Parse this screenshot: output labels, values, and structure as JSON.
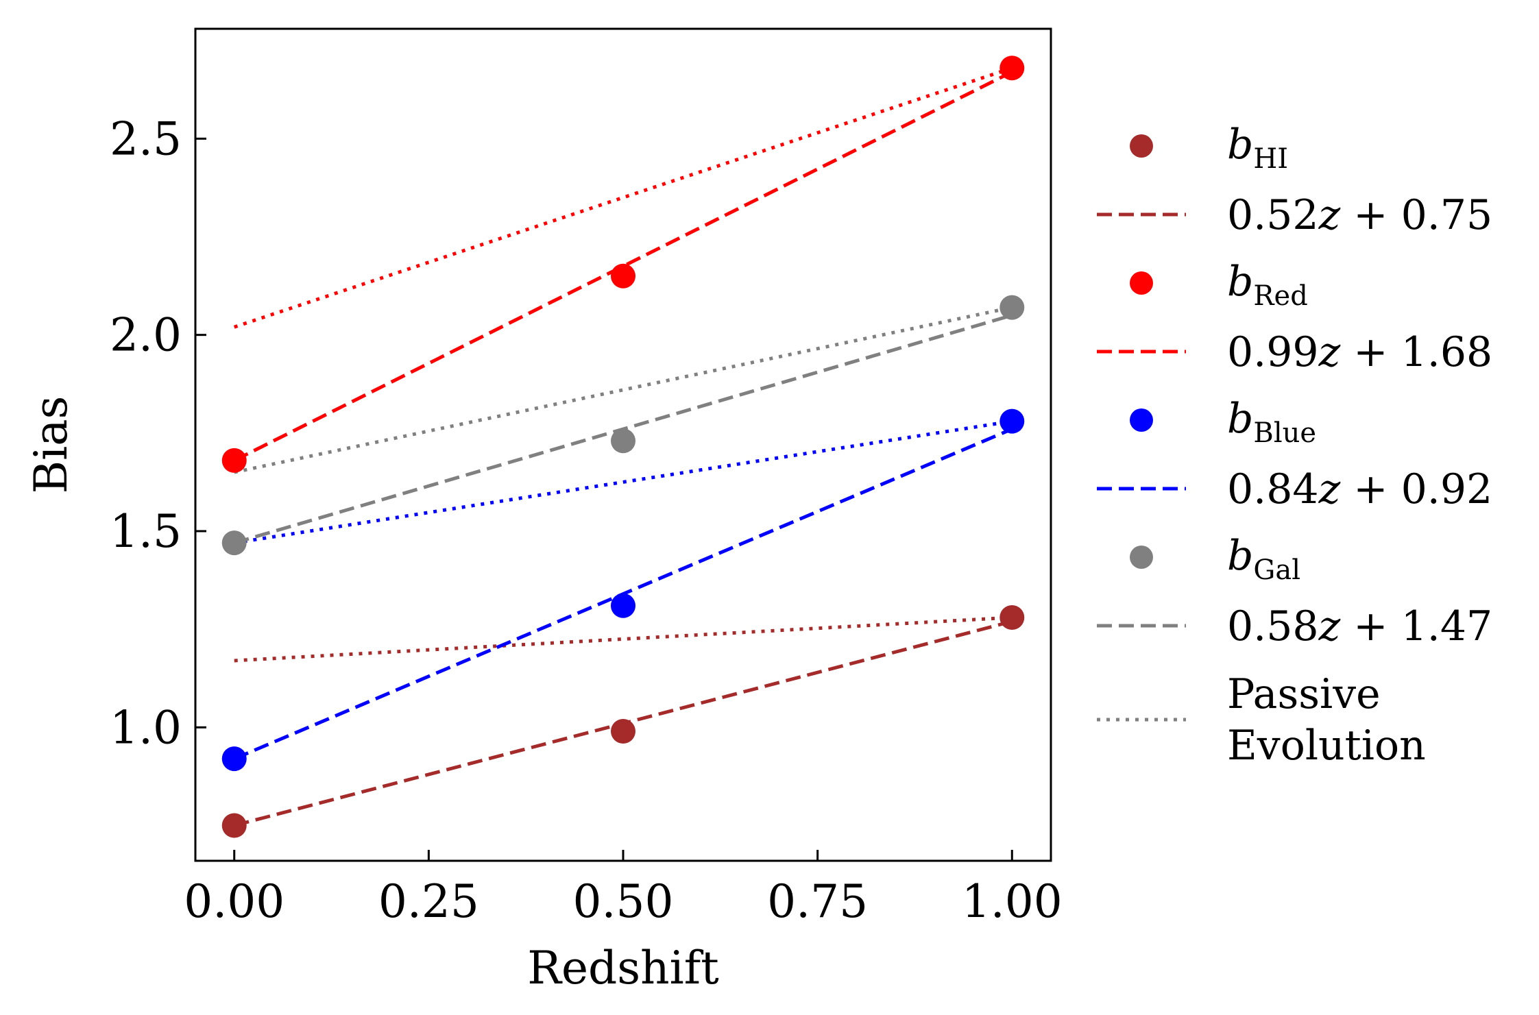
{
  "chart_data": {
    "type": "scatter",
    "xlabel": "Redshift",
    "ylabel": "Bias",
    "xlim": [
      -0.05,
      1.05
    ],
    "ylim": [
      0.66,
      2.78
    ],
    "x_ticks": [
      "0.00",
      "0.25",
      "0.50",
      "0.75",
      "1.00"
    ],
    "y_ticks": [
      "1.0",
      "1.5",
      "2.0",
      "2.5"
    ],
    "x_tick_values": [
      0,
      0.25,
      0.5,
      0.75,
      1.0
    ],
    "y_tick_values": [
      1.0,
      1.5,
      2.0,
      2.5
    ],
    "legend_position": "right",
    "tick_direction": "in",
    "series": [
      {
        "key": "hi",
        "symbol": "b",
        "subscript": "HI",
        "fit_label_pre": "0.52",
        "fit_label_var": "z",
        "fit_label_post": "+ 0.75",
        "color": "#a52a2a",
        "points": [
          [
            0,
            0.75
          ],
          [
            0.5,
            0.99
          ],
          [
            1.0,
            1.28
          ]
        ],
        "fit": {
          "slope": 0.52,
          "intercept": 0.75
        },
        "passive": [
          [
            0,
            1.17
          ],
          [
            1.0,
            1.28
          ]
        ]
      },
      {
        "key": "red",
        "symbol": "b",
        "subscript": "Red",
        "fit_label_pre": "0.99",
        "fit_label_var": "z",
        "fit_label_post": "+ 1.68",
        "color": "#ff0000",
        "points": [
          [
            0,
            1.68
          ],
          [
            0.5,
            2.15
          ],
          [
            1.0,
            2.68
          ]
        ],
        "fit": {
          "slope": 0.99,
          "intercept": 1.68
        },
        "passive": [
          [
            0,
            2.02
          ],
          [
            1.0,
            2.68
          ]
        ]
      },
      {
        "key": "blue",
        "symbol": "b",
        "subscript": "Blue",
        "fit_label_pre": "0.84",
        "fit_label_var": "z",
        "fit_label_post": "+ 0.92",
        "color": "#0000ff",
        "points": [
          [
            0,
            0.92
          ],
          [
            0.5,
            1.31
          ],
          [
            1.0,
            1.78
          ]
        ],
        "fit": {
          "slope": 0.84,
          "intercept": 0.92
        },
        "passive": [
          [
            0,
            1.47
          ],
          [
            1.0,
            1.78
          ]
        ]
      },
      {
        "key": "gal",
        "symbol": "b",
        "subscript": "Gal",
        "fit_label_pre": "0.58",
        "fit_label_var": "z",
        "fit_label_post": "+ 1.47",
        "color": "#808080",
        "points": [
          [
            0,
            1.47
          ],
          [
            0.5,
            1.73
          ],
          [
            1.0,
            2.07
          ]
        ],
        "fit": {
          "slope": 0.58,
          "intercept": 1.47
        },
        "passive": [
          [
            0,
            1.65
          ],
          [
            1.0,
            2.07
          ]
        ]
      }
    ],
    "passive_legend": [
      "Passive",
      "Evolution"
    ],
    "passive_legend_color": "#808080"
  }
}
